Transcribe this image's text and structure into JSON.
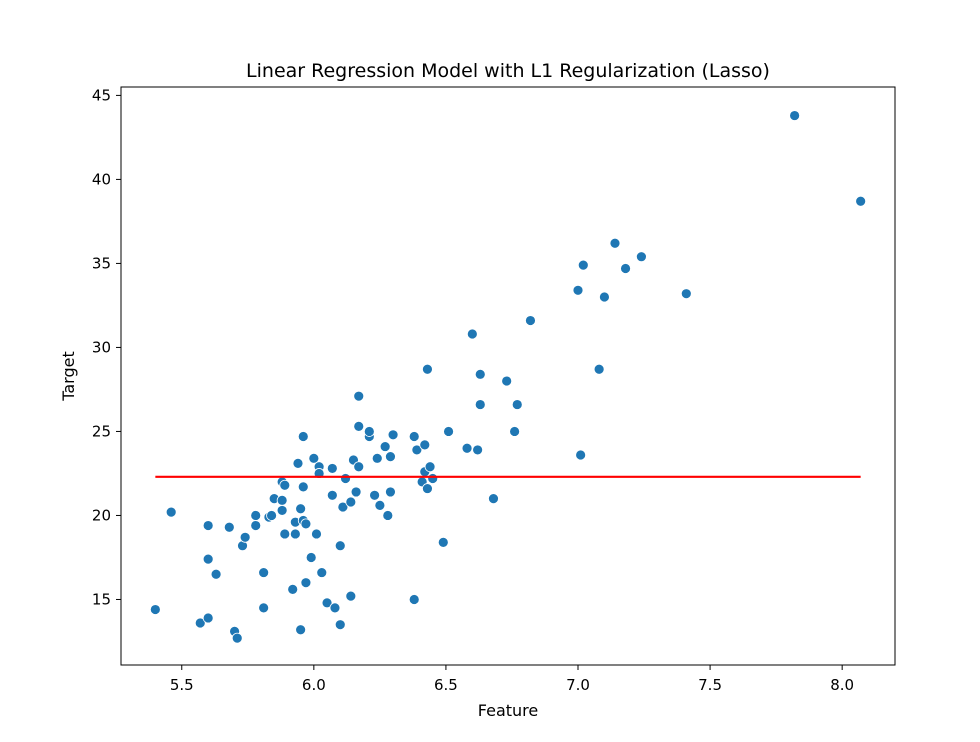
{
  "chart_data": {
    "type": "scatter",
    "title": "Linear Regression Model with L1 Regularization (Lasso)",
    "xlabel": "Feature",
    "ylabel": "Target",
    "xlim": [
      5.27,
      8.2
    ],
    "ylim": [
      11.1,
      45.5
    ],
    "xticks": [
      "5.5",
      "6.0",
      "6.5",
      "7.0",
      "7.5",
      "8.0"
    ],
    "yticks": [
      "15",
      "20",
      "25",
      "30",
      "35",
      "40",
      "45"
    ],
    "grid": false,
    "legend": "none",
    "colors": {
      "points": "#1f77b4",
      "line": "#ff0000"
    },
    "points": [
      [
        5.4,
        14.4
      ],
      [
        5.46,
        20.2
      ],
      [
        5.57,
        13.6
      ],
      [
        5.6,
        13.9
      ],
      [
        5.6,
        17.4
      ],
      [
        5.6,
        19.4
      ],
      [
        5.63,
        16.5
      ],
      [
        5.68,
        19.3
      ],
      [
        5.7,
        13.1
      ],
      [
        5.71,
        12.7
      ],
      [
        5.73,
        18.2
      ],
      [
        5.74,
        18.7
      ],
      [
        5.78,
        19.4
      ],
      [
        5.78,
        20.0
      ],
      [
        5.81,
        16.6
      ],
      [
        5.81,
        14.5
      ],
      [
        5.83,
        19.9
      ],
      [
        5.84,
        20.0
      ],
      [
        5.85,
        21.0
      ],
      [
        5.88,
        22.0
      ],
      [
        5.88,
        20.9
      ],
      [
        5.88,
        20.3
      ],
      [
        5.89,
        21.8
      ],
      [
        5.89,
        18.9
      ],
      [
        5.92,
        15.6
      ],
      [
        5.93,
        19.6
      ],
      [
        5.93,
        18.9
      ],
      [
        5.94,
        23.1
      ],
      [
        5.95,
        20.4
      ],
      [
        5.95,
        13.2
      ],
      [
        5.96,
        24.7
      ],
      [
        5.96,
        21.7
      ],
      [
        5.96,
        19.7
      ],
      [
        5.97,
        19.5
      ],
      [
        5.97,
        16.0
      ],
      [
        5.99,
        17.5
      ],
      [
        6.0,
        23.4
      ],
      [
        6.01,
        18.9
      ],
      [
        6.02,
        22.9
      ],
      [
        6.02,
        22.5
      ],
      [
        6.03,
        16.6
      ],
      [
        6.05,
        14.8
      ],
      [
        6.07,
        21.2
      ],
      [
        6.07,
        22.8
      ],
      [
        6.08,
        14.5
      ],
      [
        6.1,
        18.2
      ],
      [
        6.1,
        13.5
      ],
      [
        6.11,
        20.5
      ],
      [
        6.12,
        22.2
      ],
      [
        6.14,
        20.8
      ],
      [
        6.14,
        15.2
      ],
      [
        6.15,
        23.3
      ],
      [
        6.16,
        21.4
      ],
      [
        6.17,
        25.3
      ],
      [
        6.17,
        22.9
      ],
      [
        6.17,
        27.1
      ],
      [
        6.21,
        24.7
      ],
      [
        6.21,
        25.0
      ],
      [
        6.23,
        21.2
      ],
      [
        6.24,
        23.4
      ],
      [
        6.25,
        20.6
      ],
      [
        6.27,
        24.1
      ],
      [
        6.28,
        20.0
      ],
      [
        6.29,
        21.4
      ],
      [
        6.29,
        23.5
      ],
      [
        6.3,
        24.8
      ],
      [
        6.38,
        15.0
      ],
      [
        6.38,
        24.7
      ],
      [
        6.39,
        23.9
      ],
      [
        6.41,
        22.0
      ],
      [
        6.42,
        22.6
      ],
      [
        6.42,
        24.2
      ],
      [
        6.43,
        21.6
      ],
      [
        6.43,
        28.7
      ],
      [
        6.44,
        22.9
      ],
      [
        6.45,
        22.2
      ],
      [
        6.49,
        18.4
      ],
      [
        6.51,
        25.0
      ],
      [
        6.58,
        24.0
      ],
      [
        6.6,
        30.8
      ],
      [
        6.62,
        23.9
      ],
      [
        6.63,
        28.4
      ],
      [
        6.63,
        26.6
      ],
      [
        6.68,
        21.0
      ],
      [
        6.73,
        28.0
      ],
      [
        6.76,
        25.0
      ],
      [
        6.77,
        26.6
      ],
      [
        6.82,
        31.6
      ],
      [
        7.0,
        33.4
      ],
      [
        7.01,
        23.6
      ],
      [
        7.02,
        34.9
      ],
      [
        7.08,
        28.7
      ],
      [
        7.1,
        33.0
      ],
      [
        7.14,
        36.2
      ],
      [
        7.18,
        34.7
      ],
      [
        7.24,
        35.4
      ],
      [
        7.41,
        33.2
      ],
      [
        7.82,
        43.8
      ],
      [
        8.07,
        38.7
      ]
    ],
    "fit_line": {
      "x": [
        5.4,
        8.07
      ],
      "y": [
        22.3,
        22.3
      ]
    }
  }
}
